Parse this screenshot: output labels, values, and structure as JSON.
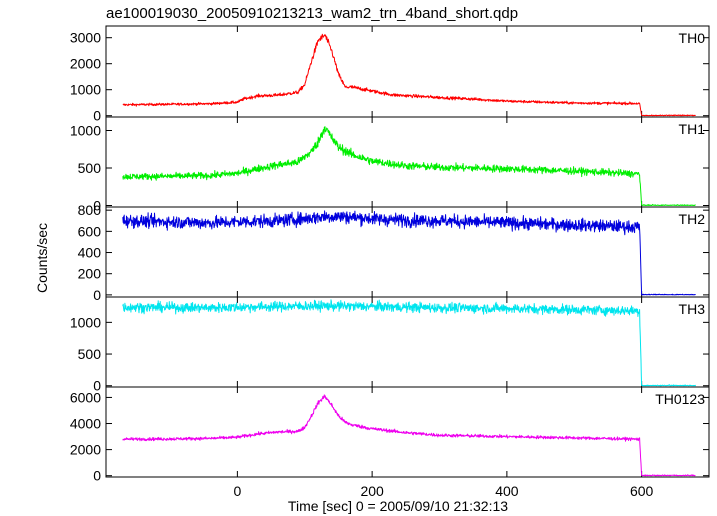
{
  "chart_data": {
    "type": "line",
    "title": "ae100019030_20050910213213_wam2_trn_4band_short.qdp",
    "xlabel": "Time [sec] 0 = 2005/09/10 21:32:13",
    "ylabel": "Counts/sec",
    "xlim": [
      -195,
      700
    ],
    "xticks": [
      0,
      200,
      400,
      600
    ],
    "grid": false,
    "legend": "none",
    "series": [
      {
        "name": "TH0",
        "color": "#ff0000",
        "ylim": [
          -50,
          3450
        ],
        "yticks": [
          0,
          1000,
          2000,
          3000
        ],
        "x": [
          -170,
          -100,
          -40,
          0,
          10,
          30,
          60,
          90,
          100,
          110,
          120,
          130,
          140,
          150,
          160,
          170,
          190,
          230,
          300,
          350,
          400,
          500,
          597,
          600,
          610,
          680
        ],
        "y": [
          420,
          440,
          460,
          520,
          650,
          760,
          790,
          900,
          1200,
          2100,
          2900,
          3100,
          2500,
          1600,
          1100,
          1100,
          1000,
          800,
          700,
          640,
          560,
          490,
          470,
          0,
          0,
          0
        ]
      },
      {
        "name": "TH1",
        "color": "#00ee00",
        "ylim": [
          -20,
          1180
        ],
        "yticks": [
          0,
          500,
          1000
        ],
        "x": [
          -170,
          -100,
          -40,
          0,
          30,
          60,
          90,
          110,
          120,
          130,
          140,
          150,
          170,
          200,
          250,
          300,
          400,
          500,
          597,
          600,
          610,
          680
        ],
        "y": [
          385,
          390,
          400,
          430,
          490,
          540,
          580,
          720,
          850,
          1050,
          900,
          780,
          680,
          590,
          530,
          510,
          490,
          460,
          420,
          0,
          0,
          0
        ]
      },
      {
        "name": "TH2",
        "color": "#0000dd",
        "ylim": [
          -20,
          830
        ],
        "yticks": [
          0,
          200,
          400,
          600,
          800
        ],
        "x": [
          -170,
          -100,
          -40,
          0,
          60,
          100,
          130,
          150,
          170,
          200,
          250,
          300,
          400,
          500,
          597,
          600,
          610,
          680
        ],
        "y": [
          700,
          690,
          680,
          690,
          700,
          720,
          740,
          740,
          735,
          720,
          705,
          700,
          680,
          660,
          640,
          0,
          0,
          0
        ]
      },
      {
        "name": "TH3",
        "color": "#00e5ee",
        "ylim": [
          -20,
          1400
        ],
        "yticks": [
          0,
          500,
          1000
        ],
        "x": [
          -170,
          -100,
          -40,
          0,
          60,
          130,
          200,
          300,
          400,
          500,
          597,
          600,
          610,
          680
        ],
        "y": [
          1240,
          1235,
          1230,
          1240,
          1250,
          1260,
          1250,
          1230,
          1220,
          1200,
          1180,
          0,
          0,
          0
        ]
      },
      {
        "name": "TH0123",
        "color": "#ee00ee",
        "ylim": [
          -100,
          6800
        ],
        "yticks": [
          0,
          2000,
          4000,
          6000
        ],
        "x": [
          -170,
          -100,
          -40,
          0,
          30,
          60,
          90,
          100,
          110,
          120,
          130,
          140,
          150,
          160,
          170,
          200,
          250,
          300,
          400,
          500,
          597,
          600,
          610,
          680
        ],
        "y": [
          2800,
          2820,
          2860,
          2950,
          3200,
          3350,
          3400,
          3700,
          4600,
          5600,
          6100,
          5400,
          4600,
          4100,
          3900,
          3600,
          3300,
          3100,
          3000,
          2900,
          2800,
          0,
          0,
          0
        ]
      }
    ]
  }
}
